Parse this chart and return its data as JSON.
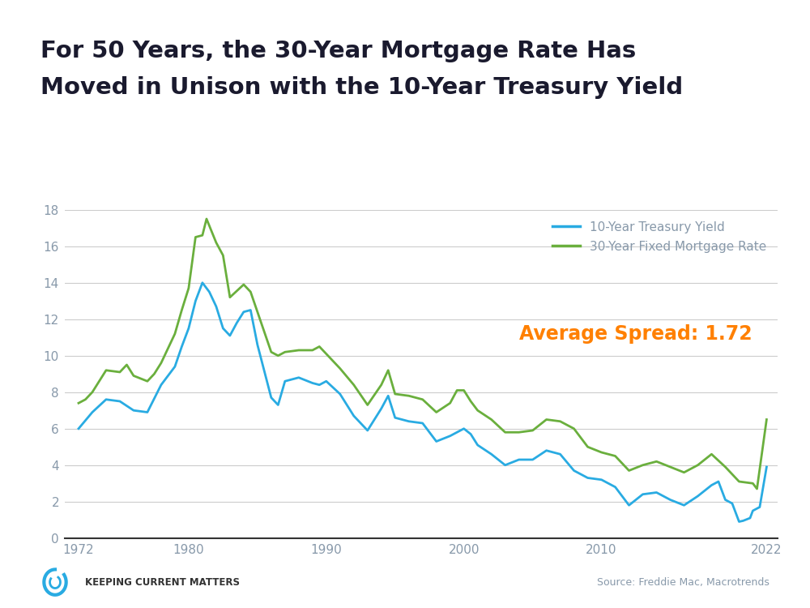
{
  "title_line1": "For 50 Years, the 30-Year Mortgage Rate Has",
  "title_line2": "Moved in Unison with the 10-Year Treasury Yield",
  "background_color": "#ffffff",
  "plot_bg_color": "#ffffff",
  "treasury_color": "#29ABE2",
  "mortgage_color": "#6AAF3D",
  "spread_text": "Average Spread: 1.72",
  "spread_color": "#FF8000",
  "top_bar_color": "#29ABE2",
  "xlabel_ticks": [
    1972,
    1980,
    1990,
    2000,
    2010,
    2022
  ],
  "ylim": [
    0,
    18
  ],
  "yticks": [
    0,
    2,
    4,
    6,
    8,
    10,
    12,
    14,
    16,
    18
  ],
  "legend_treasury": "10-Year Treasury Yield",
  "legend_mortgage": "30-Year Fixed Mortgage Rate",
  "source_text": "Source: Freddie Mac, Macrotrends",
  "footer_text": "Keeping Current Matters",
  "tick_color": "#8899AA",
  "grid_color": "#CCCCCC",
  "title_color": "#1A1A2E",
  "treasury_x": [
    1972,
    1973,
    1974,
    1975,
    1976,
    1977,
    1978,
    1979,
    1979.5,
    1980,
    1980.5,
    1981,
    1981.5,
    1982,
    1982.5,
    1983,
    1983.5,
    1984,
    1984.5,
    1985,
    1986,
    1986.5,
    1987,
    1988,
    1989,
    1989.5,
    1990,
    1991,
    1992,
    1993,
    1994,
    1994.5,
    1995,
    1996,
    1997,
    1998,
    1999,
    2000,
    2000.5,
    2001,
    2002,
    2003,
    2004,
    2005,
    2006,
    2007,
    2008,
    2009,
    2010,
    2011,
    2012,
    2013,
    2014,
    2015,
    2016,
    2017,
    2018,
    2018.5,
    2019,
    2019.5,
    2020,
    2020.3,
    2020.8,
    2021,
    2021.5,
    2022
  ],
  "treasury_y": [
    6.0,
    6.9,
    7.6,
    7.5,
    7.0,
    6.9,
    8.4,
    9.4,
    10.5,
    11.5,
    13.0,
    14.0,
    13.5,
    12.7,
    11.5,
    11.1,
    11.8,
    12.4,
    12.5,
    10.6,
    7.7,
    7.3,
    8.6,
    8.8,
    8.5,
    8.4,
    8.6,
    7.9,
    6.7,
    5.9,
    7.1,
    7.8,
    6.6,
    6.4,
    6.3,
    5.3,
    5.6,
    6.0,
    5.7,
    5.1,
    4.6,
    4.0,
    4.3,
    4.3,
    4.8,
    4.6,
    3.7,
    3.3,
    3.2,
    2.8,
    1.8,
    2.4,
    2.5,
    2.1,
    1.8,
    2.3,
    2.9,
    3.1,
    2.1,
    1.9,
    0.9,
    0.95,
    1.1,
    1.5,
    1.7,
    3.9
  ],
  "mortgage_x": [
    1972,
    1972.5,
    1973,
    1974,
    1975,
    1975.5,
    1976,
    1977,
    1977.5,
    1978,
    1979,
    1979.5,
    1980,
    1980.5,
    1981,
    1981.3,
    1982,
    1982.5,
    1983,
    1984,
    1984.5,
    1985,
    1986,
    1986.5,
    1987,
    1988,
    1989,
    1989.5,
    1990,
    1991,
    1992,
    1993,
    1994,
    1994.5,
    1995,
    1996,
    1997,
    1998,
    1999,
    1999.5,
    2000,
    2000.5,
    2001,
    2002,
    2003,
    2004,
    2005,
    2006,
    2007,
    2008,
    2009,
    2010,
    2011,
    2012,
    2013,
    2014,
    2015,
    2016,
    2017,
    2018,
    2019,
    2020,
    2021,
    2021.3,
    2022
  ],
  "mortgage_y": [
    7.4,
    7.6,
    8.0,
    9.2,
    9.1,
    9.5,
    8.9,
    8.6,
    9.0,
    9.6,
    11.2,
    12.5,
    13.7,
    16.5,
    16.6,
    17.5,
    16.2,
    15.5,
    13.2,
    13.9,
    13.5,
    12.4,
    10.2,
    10.0,
    10.2,
    10.3,
    10.3,
    10.5,
    10.1,
    9.3,
    8.4,
    7.3,
    8.4,
    9.2,
    7.9,
    7.8,
    7.6,
    6.9,
    7.4,
    8.1,
    8.1,
    7.5,
    7.0,
    6.5,
    5.8,
    5.8,
    5.9,
    6.5,
    6.4,
    6.0,
    5.0,
    4.7,
    4.5,
    3.7,
    4.0,
    4.2,
    3.9,
    3.6,
    4.0,
    4.6,
    3.9,
    3.1,
    3.0,
    2.7,
    6.5
  ]
}
